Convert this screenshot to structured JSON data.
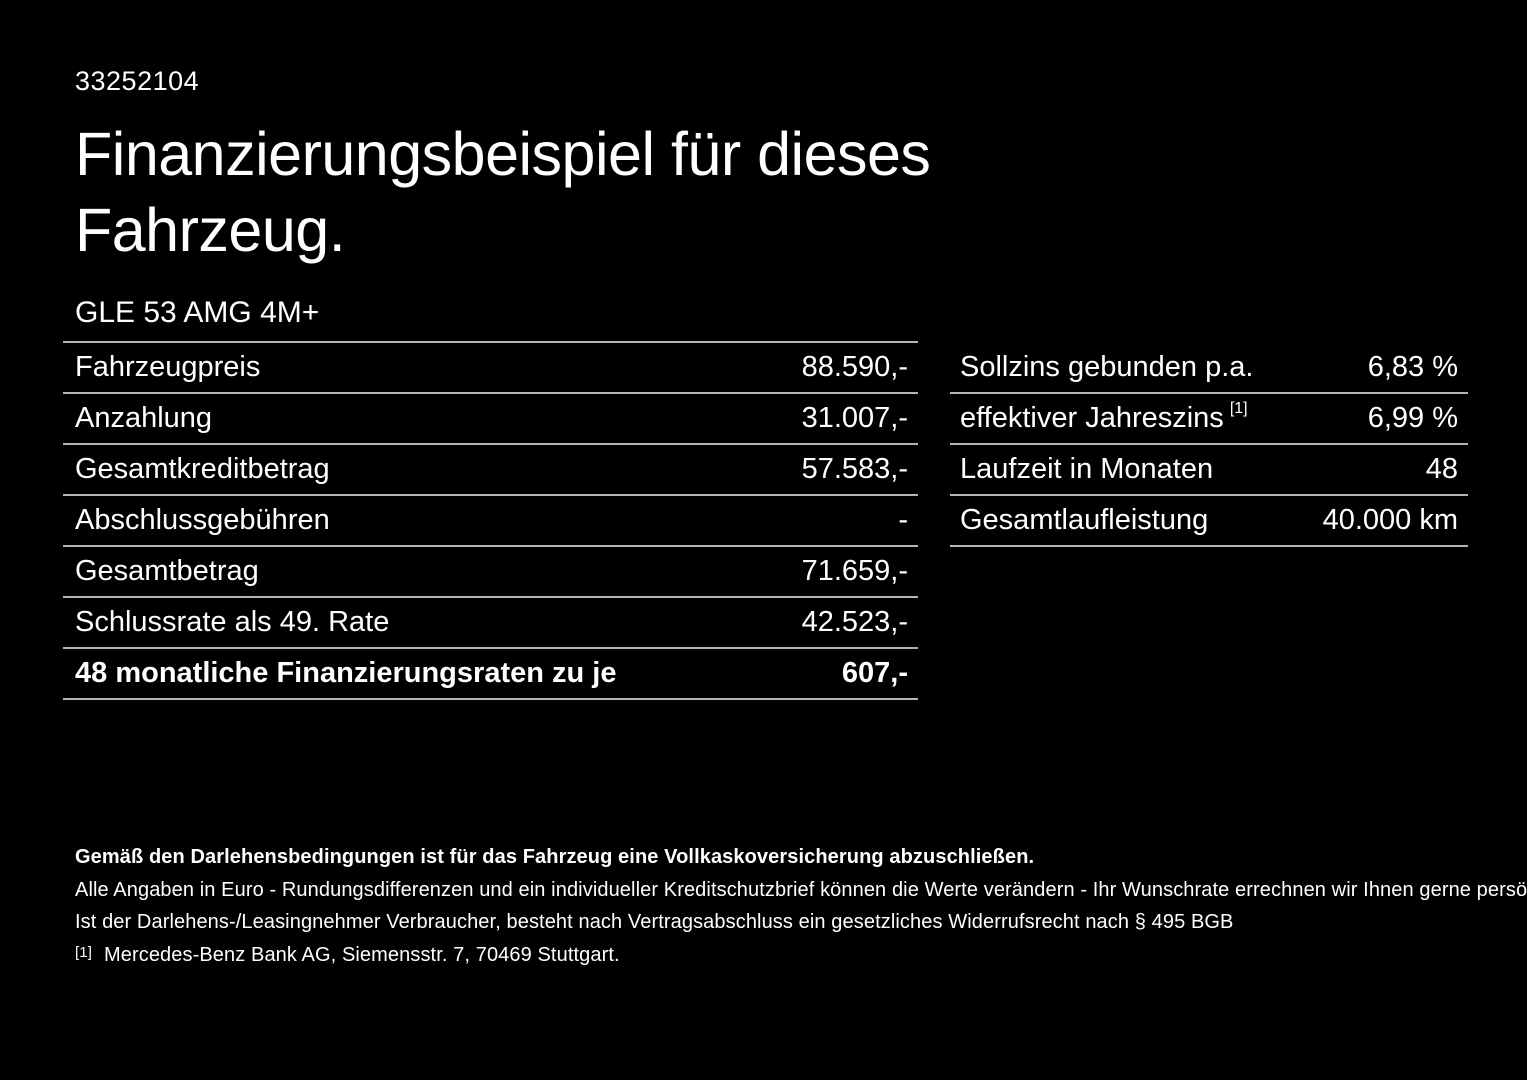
{
  "page": {
    "id_number": "33252104",
    "title_line1": "Finanzierungsbeispiel für dieses",
    "title_line2": "Fahrzeug.",
    "vehicle_model": "GLE 53 AMG 4M+"
  },
  "finance_table": {
    "rows": [
      {
        "label": "Fahrzeugpreis",
        "value": "88.590,-"
      },
      {
        "label": "Anzahlung",
        "value": "31.007,-"
      },
      {
        "label": "Gesamtkreditbetrag",
        "value": "57.583,-"
      },
      {
        "label": "Abschlussgebühren",
        "value": "-"
      },
      {
        "label": "Gesamtbetrag",
        "value": "71.659,-"
      },
      {
        "label": "Schlussrate als 49. Rate",
        "value": "42.523,-"
      },
      {
        "label": "48 monatliche Finanzierungsraten zu je",
        "value": "607,-"
      }
    ]
  },
  "conditions_table": {
    "rows": [
      {
        "label": "Sollzins gebunden p.a.",
        "sup": "",
        "value": "6,83 %"
      },
      {
        "label": "effektiver Jahreszins",
        "sup": "[1]",
        "value": "6,99 %"
      },
      {
        "label": "Laufzeit in Monaten",
        "sup": "",
        "value": "48"
      },
      {
        "label": "Gesamtlaufleistung",
        "sup": "",
        "value": "40.000 km"
      }
    ]
  },
  "footnotes": {
    "insurance_note": "Gemäß den Darlehensbedingungen ist für das Fahrzeug eine Vollkaskoversicherung abzuschließen.",
    "rounding_note": "Alle Angaben in Euro - Rundungsdifferenzen und ein individueller Kreditschutzbrief können die Werte verändern - Ihr Wunschrate errechnen wir Ihnen gerne persönlich",
    "withdrawal_note": "Ist der Darlehens-/Leasingnehmer Verbraucher, besteht nach Vertragsabschluss ein gesetzliches Widerrufsrecht nach § 495 BGB",
    "bank_marker": "[1]",
    "bank_note": "Mercedes-Benz Bank AG, Siemensstr. 7, 70469 Stuttgart."
  },
  "colors": {
    "background": "#000000",
    "text": "#ffffff",
    "separator": "#b4b4b4"
  }
}
